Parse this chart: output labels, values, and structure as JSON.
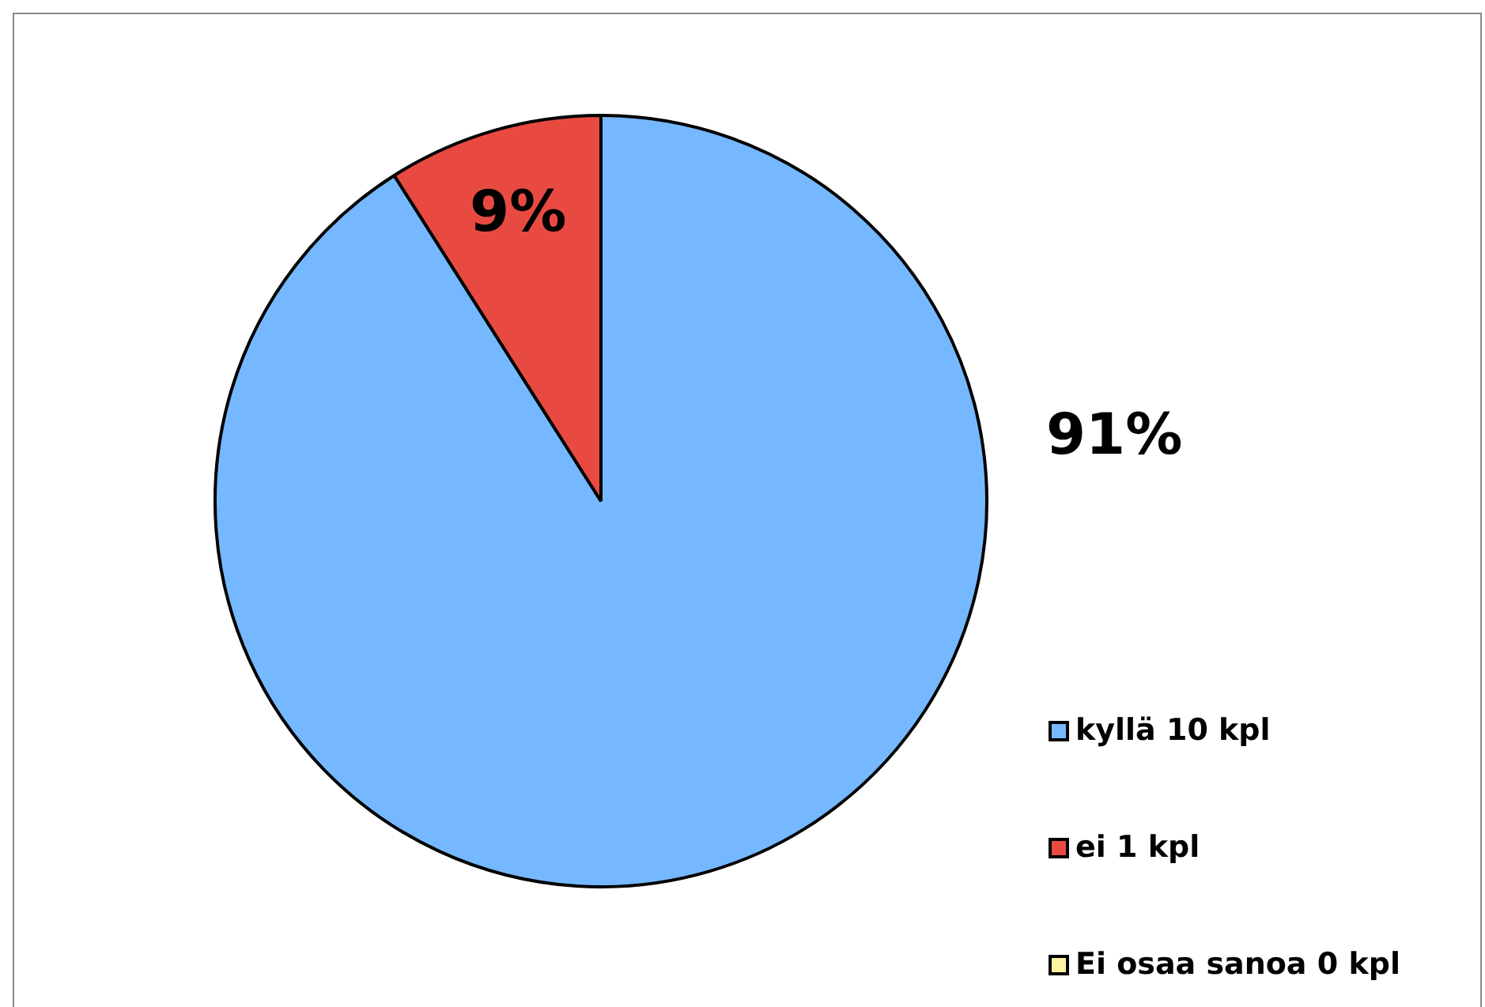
{
  "chart_data": {
    "type": "pie",
    "categories": [
      "kyllä 10 kpl",
      "ei 1 kpl",
      "Ei osaa sanoa 0 kpl"
    ],
    "values": [
      91,
      9,
      0
    ],
    "colors": [
      "#75b8ff",
      "#e84a42",
      "#fff3a0"
    ],
    "value_labels": [
      "91%",
      "9%",
      null
    ],
    "legend": "bottom right"
  }
}
